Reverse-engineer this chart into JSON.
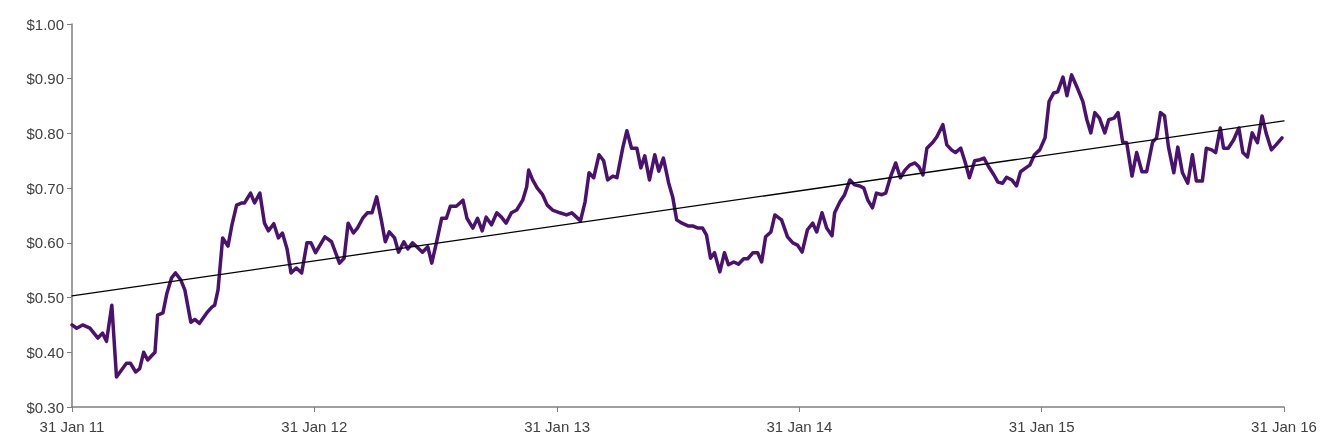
{
  "chart_data": {
    "type": "line",
    "marker": "none",
    "xlim": [
      "2011-01-31",
      "2016-01-31"
    ],
    "xticks": [
      {
        "value": "2011-01-31",
        "label": "31 Jan 11"
      },
      {
        "value": "2012-01-31",
        "label": "31 Jan 12"
      },
      {
        "value": "2013-01-31",
        "label": "31 Jan 13"
      },
      {
        "value": "2014-01-31",
        "label": "31 Jan 14"
      },
      {
        "value": "2015-01-31",
        "label": "31 Jan 15"
      },
      {
        "value": "2016-01-31",
        "label": "31 Jan 16"
      }
    ],
    "ylim": [
      0.3,
      1.0
    ],
    "yticks": [
      {
        "value": 0.3,
        "label": "$0.30"
      },
      {
        "value": 0.4,
        "label": "$0.40"
      },
      {
        "value": 0.5,
        "label": "$0.50"
      },
      {
        "value": 0.6,
        "label": "$0.60"
      },
      {
        "value": 0.7,
        "label": "$0.70"
      },
      {
        "value": 0.8,
        "label": "$0.80"
      },
      {
        "value": 0.9,
        "label": "$0.90"
      },
      {
        "value": 1.0,
        "label": "$1.00"
      }
    ],
    "series": [
      {
        "color": "#4b116f",
        "x": [
          "2011-01-31",
          "2011-02-07",
          "2011-02-16",
          "2011-02-27",
          "2011-03-11",
          "2011-03-18",
          "2011-03-24",
          "2011-04-01",
          "2011-04-08",
          "2011-04-23",
          "2011-04-29",
          "2011-05-07",
          "2011-05-13",
          "2011-05-19",
          "2011-05-25",
          "2011-06-05",
          "2011-06-09",
          "2011-06-17",
          "2011-06-23",
          "2011-06-30",
          "2011-07-06",
          "2011-07-14",
          "2011-07-20",
          "2011-07-29",
          "2011-08-04",
          "2011-08-11",
          "2011-08-22",
          "2011-08-30",
          "2011-09-03",
          "2011-09-08",
          "2011-09-15",
          "2011-09-23",
          "2011-09-29",
          "2011-10-06",
          "2011-10-14",
          "2011-10-18",
          "2011-10-27",
          "2011-11-02",
          "2011-11-10",
          "2011-11-17",
          "2011-11-23",
          "2011-12-01",
          "2011-12-08",
          "2011-12-14",
          "2011-12-21",
          "2011-12-27",
          "2012-01-04",
          "2012-01-12",
          "2012-01-20",
          "2012-01-26",
          "2012-02-02",
          "2012-02-16",
          "2012-02-26",
          "2012-03-09",
          "2012-03-16",
          "2012-03-22",
          "2012-03-30",
          "2012-04-05",
          "2012-04-13",
          "2012-04-20",
          "2012-04-27",
          "2012-05-04",
          "2012-05-11",
          "2012-05-17",
          "2012-05-23",
          "2012-05-31",
          "2012-06-06",
          "2012-06-14",
          "2012-06-20",
          "2012-06-27",
          "2012-07-05",
          "2012-07-12",
          "2012-07-20",
          "2012-07-26",
          "2012-08-02",
          "2012-08-10",
          "2012-08-17",
          "2012-08-23",
          "2012-09-01",
          "2012-09-11",
          "2012-09-17",
          "2012-09-26",
          "2012-10-03",
          "2012-10-10",
          "2012-10-16",
          "2012-10-24",
          "2012-11-01",
          "2012-11-08",
          "2012-11-15",
          "2012-11-23",
          "2012-12-01",
          "2012-12-10",
          "2012-12-16",
          "2012-12-19",
          "2012-12-25",
          "2013-01-01",
          "2013-01-09",
          "2013-01-16",
          "2013-01-24",
          "2013-02-04",
          "2013-02-14",
          "2013-02-22",
          "2013-03-01",
          "2013-03-07",
          "2013-03-14",
          "2013-03-20",
          "2013-03-27",
          "2013-04-04",
          "2013-04-11",
          "2013-04-17",
          "2013-04-25",
          "2013-05-01",
          "2013-05-10",
          "2013-05-16",
          "2013-05-23",
          "2013-05-31",
          "2013-06-06",
          "2013-06-12",
          "2013-06-19",
          "2013-06-27",
          "2013-07-03",
          "2013-07-10",
          "2013-07-18",
          "2013-07-24",
          "2013-07-30",
          "2013-08-07",
          "2013-08-16",
          "2013-08-23",
          "2013-08-31",
          "2013-09-07",
          "2013-09-13",
          "2013-09-19",
          "2013-09-25",
          "2013-10-03",
          "2013-10-10",
          "2013-10-16",
          "2013-10-24",
          "2013-10-31",
          "2013-11-08",
          "2013-11-14",
          "2013-11-22",
          "2013-11-29",
          "2013-12-05",
          "2013-12-11",
          "2013-12-19",
          "2013-12-25",
          "2014-01-04",
          "2014-01-13",
          "2014-01-21",
          "2014-01-28",
          "2014-02-04",
          "2014-02-12",
          "2014-02-20",
          "2014-02-26",
          "2014-03-06",
          "2014-03-13",
          "2014-03-21",
          "2014-03-25",
          "2014-04-02",
          "2014-04-09",
          "2014-04-17",
          "2014-04-24",
          "2014-05-02",
          "2014-05-08",
          "2014-05-14",
          "2014-05-21",
          "2014-05-27",
          "2014-06-04",
          "2014-06-10",
          "2014-06-17",
          "2014-06-25",
          "2014-07-02",
          "2014-07-09",
          "2014-07-16",
          "2014-07-24",
          "2014-07-30",
          "2014-08-05",
          "2014-08-11",
          "2014-08-20",
          "2014-08-26",
          "2014-09-04",
          "2014-09-10",
          "2014-09-17",
          "2014-09-23",
          "2014-10-01",
          "2014-10-08",
          "2014-10-14",
          "2014-10-22",
          "2014-10-30",
          "2014-11-05",
          "2014-11-12",
          "2014-11-20",
          "2014-11-26",
          "2014-12-03",
          "2014-12-09",
          "2014-12-17",
          "2014-12-24",
          "2014-12-30",
          "2015-01-07",
          "2015-01-13",
          "2015-01-20",
          "2015-01-28",
          "2015-02-05",
          "2015-02-11",
          "2015-02-18",
          "2015-02-24",
          "2015-03-04",
          "2015-03-10",
          "2015-03-17",
          "2015-03-25",
          "2015-04-03",
          "2015-04-09",
          "2015-04-15",
          "2015-04-21",
          "2015-04-28",
          "2015-05-06",
          "2015-05-12",
          "2015-05-20",
          "2015-05-26",
          "2015-06-02",
          "2015-06-08",
          "2015-06-16",
          "2015-06-23",
          "2015-07-01",
          "2015-07-08",
          "2015-07-17",
          "2015-07-23",
          "2015-07-29",
          "2015-08-04",
          "2015-08-10",
          "2015-08-18",
          "2015-08-24",
          "2015-08-31",
          "2015-09-08",
          "2015-09-15",
          "2015-09-21",
          "2015-09-30",
          "2015-10-06",
          "2015-10-14",
          "2015-10-20",
          "2015-10-27",
          "2015-11-01",
          "2015-11-08",
          "2015-11-16",
          "2015-11-24",
          "2015-11-30",
          "2015-12-07",
          "2015-12-14",
          "2015-12-22",
          "2015-12-29",
          "2016-01-04",
          "2016-01-12",
          "2016-01-19",
          "2016-01-28"
        ],
        "values": [
          0.45,
          0.444,
          0.45,
          0.444,
          0.426,
          0.435,
          0.42,
          0.486,
          0.355,
          0.38,
          0.38,
          0.364,
          0.37,
          0.4,
          0.386,
          0.4,
          0.468,
          0.472,
          0.508,
          0.536,
          0.545,
          0.532,
          0.514,
          0.455,
          0.46,
          0.453,
          0.472,
          0.483,
          0.486,
          0.514,
          0.609,
          0.594,
          0.633,
          0.669,
          0.673,
          0.673,
          0.691,
          0.673,
          0.691,
          0.636,
          0.622,
          0.635,
          0.609,
          0.618,
          0.589,
          0.545,
          0.554,
          0.545,
          0.6,
          0.6,
          0.582,
          0.611,
          0.602,
          0.563,
          0.572,
          0.636,
          0.618,
          0.627,
          0.645,
          0.655,
          0.655,
          0.684,
          0.642,
          0.602,
          0.62,
          0.609,
          0.583,
          0.602,
          0.589,
          0.6,
          0.591,
          0.583,
          0.593,
          0.563,
          0.6,
          0.645,
          0.645,
          0.667,
          0.667,
          0.678,
          0.645,
          0.627,
          0.645,
          0.622,
          0.647,
          0.633,
          0.655,
          0.647,
          0.636,
          0.655,
          0.66,
          0.678,
          0.702,
          0.733,
          0.715,
          0.7,
          0.688,
          0.669,
          0.66,
          0.655,
          0.651,
          0.655,
          0.647,
          0.64,
          0.675,
          0.728,
          0.719,
          0.761,
          0.75,
          0.715,
          0.722,
          0.719,
          0.775,
          0.805,
          0.773,
          0.773,
          0.737,
          0.759,
          0.715,
          0.761,
          0.731,
          0.755,
          0.709,
          0.684,
          0.642,
          0.636,
          0.631,
          0.631,
          0.627,
          0.627,
          0.614,
          0.572,
          0.582,
          0.547,
          0.582,
          0.56,
          0.565,
          0.561,
          0.571,
          0.571,
          0.582,
          0.582,
          0.565,
          0.611,
          0.62,
          0.651,
          0.642,
          0.611,
          0.6,
          0.596,
          0.583,
          0.624,
          0.636,
          0.62,
          0.655,
          0.627,
          0.613,
          0.655,
          0.675,
          0.688,
          0.715,
          0.706,
          0.704,
          0.7,
          0.678,
          0.664,
          0.691,
          0.688,
          0.691,
          0.72,
          0.746,
          0.719,
          0.733,
          0.742,
          0.746,
          0.739,
          0.724,
          0.773,
          0.784,
          0.794,
          0.816,
          0.779,
          0.77,
          0.765,
          0.773,
          0.746,
          0.719,
          0.75,
          0.752,
          0.755,
          0.739,
          0.724,
          0.711,
          0.709,
          0.72,
          0.715,
          0.704,
          0.73,
          0.737,
          0.742,
          0.761,
          0.77,
          0.792,
          0.858,
          0.874,
          0.876,
          0.903,
          0.869,
          0.907,
          0.885,
          0.858,
          0.825,
          0.801,
          0.838,
          0.828,
          0.801,
          0.825,
          0.828,
          0.838,
          0.784,
          0.783,
          0.722,
          0.765,
          0.73,
          0.73,
          0.784,
          0.792,
          0.838,
          0.832,
          0.775,
          0.728,
          0.775,
          0.728,
          0.709,
          0.761,
          0.713,
          0.713,
          0.773,
          0.77,
          0.765,
          0.81,
          0.773,
          0.773,
          0.788,
          0.81,
          0.765,
          0.757,
          0.801,
          0.783,
          0.832,
          0.801,
          0.77,
          0.779,
          0.792
        ]
      },
      {
        "color": "#000000",
        "x": [
          "2011-01-31",
          "2016-01-31"
        ],
        "values": [
          0.503,
          0.823
        ]
      }
    ]
  }
}
